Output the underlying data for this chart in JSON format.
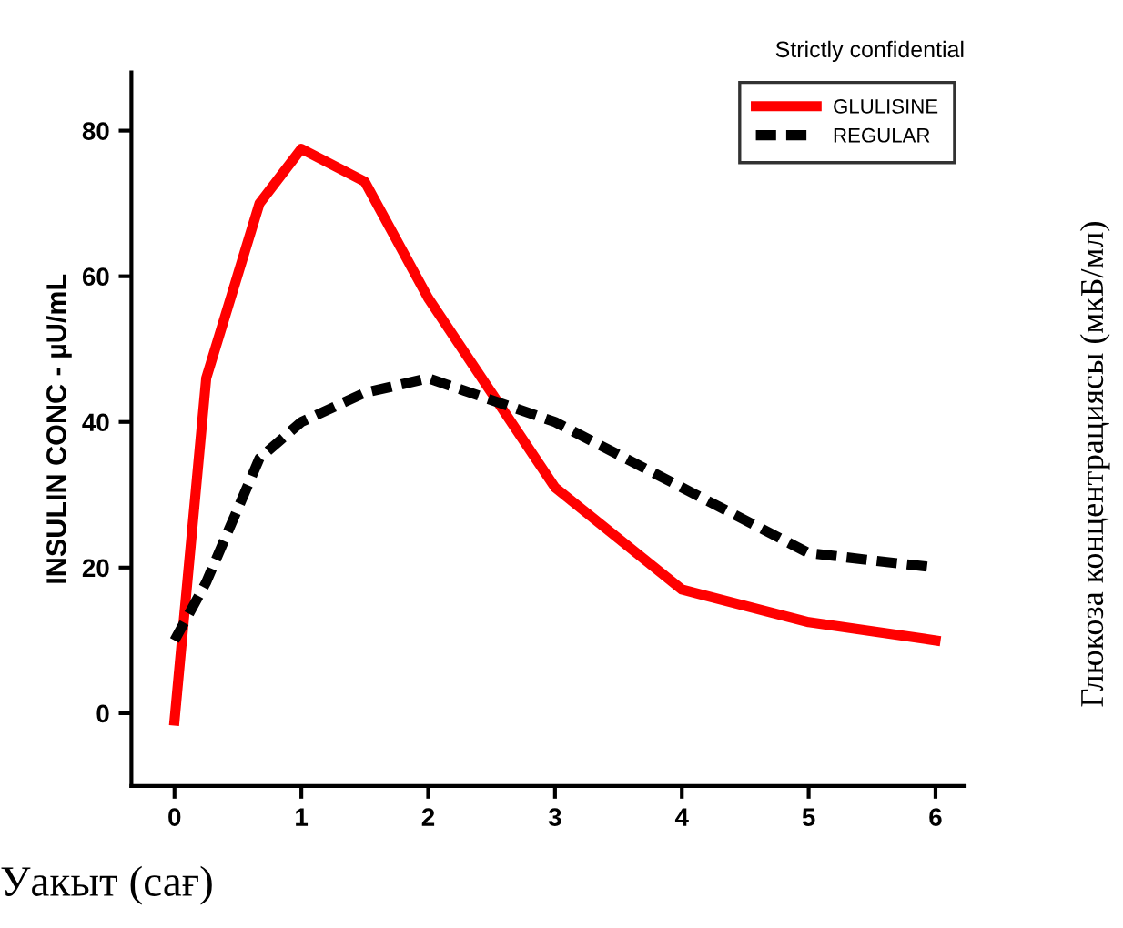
{
  "chart_data": {
    "type": "line",
    "title": "Strictly confidential",
    "xlabel": "Уакыт (сағ)",
    "ylabel": "INSULIN CONC - µU/mL",
    "annotations": [
      "Глюкоза концентрациясы (мкБ/мл)"
    ],
    "x": [
      0,
      0.25,
      0.67,
      1,
      1.5,
      2,
      3,
      4,
      5,
      6
    ],
    "series": [
      {
        "name": "GLULISINE",
        "color": "#ff0000",
        "line_style": "solid",
        "values": [
          -1,
          46,
          70,
          77.5,
          73,
          57,
          31,
          17,
          12.5,
          10
        ]
      },
      {
        "name": "REGULAR",
        "color": "#000000",
        "line_style": "dashed",
        "values": [
          10,
          18,
          35,
          40,
          44,
          46,
          40,
          31,
          22,
          20
        ]
      }
    ],
    "xlim": [
      -0.34,
      6.23
    ],
    "ylim": [
      -10,
      88
    ],
    "xticks": [
      0,
      1,
      2,
      3,
      4,
      5,
      6
    ],
    "yticks": [
      0,
      20,
      40,
      60,
      80
    ],
    "grid": false,
    "legend": "top right",
    "marker": "none"
  }
}
